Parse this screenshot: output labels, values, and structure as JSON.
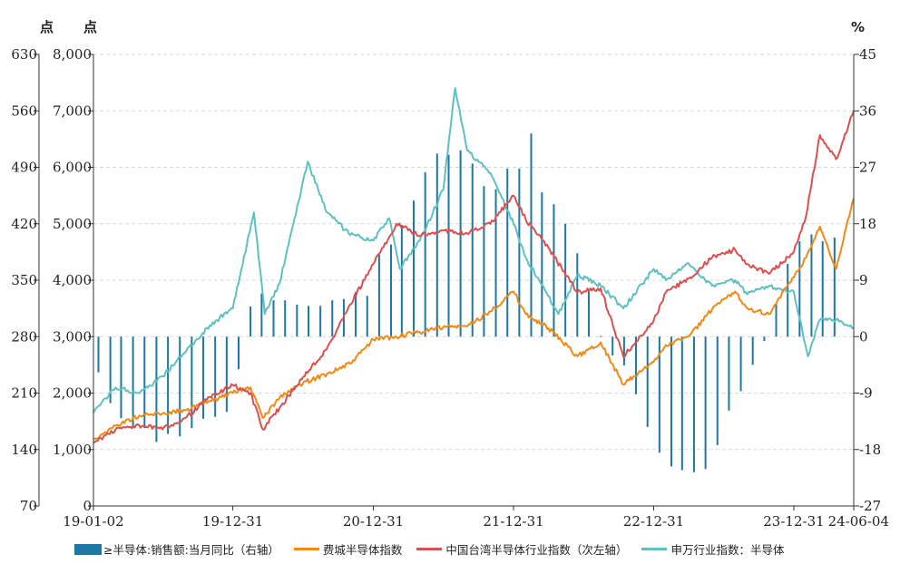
{
  "chart_data": {
    "type": "line+bar",
    "axis_units": {
      "left_outer": "点",
      "left_inner": "点",
      "right": "%"
    },
    "y_left_outer": {
      "ticks": [
        "630",
        "560",
        "490",
        "420",
        "350",
        "280",
        "210",
        "140",
        "70"
      ],
      "range": [
        70,
        630
      ]
    },
    "y_left_inner": {
      "ticks": [
        "8,000",
        "7,000",
        "6,000",
        "5,000",
        "4,000",
        "3,000",
        "2,000",
        "1,000",
        "0"
      ],
      "range": [
        0,
        8000
      ]
    },
    "y_right": {
      "ticks": [
        "45",
        "36",
        "27",
        "18",
        "9",
        "0",
        "-9",
        "-18",
        "-27"
      ],
      "range": [
        -27,
        45
      ]
    },
    "x_ticks": [
      "19-01-02",
      "19-12-31",
      "20-12-31",
      "21-12-31",
      "22-12-31",
      "23-12-31",
      "24-06-04"
    ],
    "grid": "horizontal dashed",
    "legend_position": "bottom",
    "series": [
      {
        "name": "全球半导体:销售额:当月同比（右轴）",
        "legend_text": "≥半导体:销售额:当月同比（右轴）",
        "type": "bar",
        "axis": "right",
        "color": "#1f77a4",
        "x": [
          "2019-01",
          "2019-02",
          "2019-03",
          "2019-04",
          "2019-05",
          "2019-06",
          "2019-07",
          "2019-08",
          "2019-09",
          "2019-10",
          "2019-11",
          "2019-12",
          "2020-01",
          "2020-02",
          "2020-03",
          "2020-04",
          "2020-05",
          "2020-06",
          "2020-07",
          "2020-08",
          "2020-09",
          "2020-10",
          "2020-11",
          "2020-12",
          "2021-01",
          "2021-02",
          "2021-03",
          "2021-04",
          "2021-05",
          "2021-06",
          "2021-07",
          "2021-08",
          "2021-09",
          "2021-10",
          "2021-11",
          "2021-12",
          "2022-01",
          "2022-02",
          "2022-03",
          "2022-04",
          "2022-05",
          "2022-06",
          "2022-07",
          "2022-08",
          "2022-09",
          "2022-10",
          "2022-11",
          "2022-12",
          "2023-01",
          "2023-02",
          "2023-03",
          "2023-04",
          "2023-05",
          "2023-06",
          "2023-07",
          "2023-08",
          "2023-09",
          "2023-10",
          "2023-11",
          "2023-12",
          "2024-01",
          "2024-02",
          "2024-03",
          "2024-04"
        ],
        "values": [
          -5.7,
          -10.6,
          -13,
          -14.6,
          -14.6,
          -16.8,
          -15.5,
          -15.9,
          -14.6,
          -13.1,
          -12.8,
          -12,
          -5.2,
          4.8,
          6.9,
          5.8,
          5.8,
          5.1,
          4.9,
          4.9,
          5.8,
          6,
          7.1,
          6.5,
          13.2,
          14.7,
          17.8,
          21.7,
          26.2,
          29.2,
          29,
          29.7,
          27.6,
          24,
          23.5,
          26.8,
          26.8,
          32.4,
          23,
          21.1,
          18,
          13.3,
          7.3,
          0.1,
          -3,
          -4.6,
          -9.2,
          -14.4,
          -18.5,
          -20.7,
          -21.3,
          -21.6,
          -21.1,
          -17.3,
          -11.8,
          -8.7,
          -4.5,
          -0.7,
          5.3,
          11.6,
          15.2,
          16.3,
          15.2,
          15.8
        ]
      },
      {
        "name": "费城半导体指数",
        "type": "line",
        "axis": "left_inner",
        "color": "#ef8a17",
        "x": [
          "2019-01-02",
          "2019-03-01",
          "2019-05-01",
          "2019-07-01",
          "2019-09-01",
          "2019-11-01",
          "2019-12-31",
          "2020-02-15",
          "2020-03-18",
          "2020-05-01",
          "2020-07-01",
          "2020-09-01",
          "2020-11-01",
          "2020-12-31",
          "2021-03-01",
          "2021-05-01",
          "2021-07-01",
          "2021-09-01",
          "2021-11-01",
          "2021-12-31",
          "2022-02-01",
          "2022-04-01",
          "2022-06-15",
          "2022-08-15",
          "2022-10-13",
          "2022-12-31",
          "2023-02-01",
          "2023-04-01",
          "2023-06-01",
          "2023-07-31",
          "2023-09-01",
          "2023-10-27",
          "2023-12-31",
          "2024-02-01",
          "2024-03-08",
          "2024-04-19",
          "2024-06-04"
        ],
        "values": [
          1180,
          1420,
          1600,
          1640,
          1700,
          1860,
          2000,
          2100,
          1560,
          1920,
          2180,
          2340,
          2520,
          2950,
          3000,
          3080,
          3170,
          3180,
          3450,
          3800,
          3400,
          3150,
          2650,
          2900,
          2150,
          2550,
          2850,
          3000,
          3480,
          3800,
          3500,
          3400,
          4050,
          4400,
          4950,
          4200,
          5450
        ]
      },
      {
        "name": "中国台湾半导体行业指数（次左轴）",
        "type": "line",
        "axis": "left_outer",
        "color": "#d95050",
        "x": [
          "2019-01-02",
          "2019-03-01",
          "2019-05-01",
          "2019-07-01",
          "2019-09-01",
          "2019-11-01",
          "2019-12-31",
          "2020-02-15",
          "2020-03-18",
          "2020-05-01",
          "2020-07-01",
          "2020-09-01",
          "2020-11-01",
          "2020-12-31",
          "2021-03-01",
          "2021-05-01",
          "2021-07-01",
          "2021-09-01",
          "2021-11-01",
          "2021-12-31",
          "2022-02-01",
          "2022-04-01",
          "2022-06-15",
          "2022-08-15",
          "2022-10-13",
          "2022-12-31",
          "2023-02-01",
          "2023-04-01",
          "2023-06-01",
          "2023-07-31",
          "2023-09-01",
          "2023-10-27",
          "2023-12-31",
          "2024-02-01",
          "2024-03-08",
          "2024-04-19",
          "2024-06-04"
        ],
        "values": [
          148,
          165,
          170,
          165,
          180,
          205,
          220,
          210,
          165,
          192,
          230,
          265,
          320,
          370,
          420,
          405,
          412,
          408,
          420,
          455,
          425,
          390,
          335,
          340,
          255,
          300,
          335,
          352,
          378,
          388,
          370,
          358,
          385,
          430,
          530,
          500,
          560
        ]
      },
      {
        "name": "申万行业指数：半导体",
        "type": "line",
        "axis": "left_inner",
        "color": "#5ec1c0",
        "x": [
          "2019-01-02",
          "2019-03-01",
          "2019-05-01",
          "2019-07-01",
          "2019-09-01",
          "2019-11-01",
          "2019-12-31",
          "2020-02-24",
          "2020-03-23",
          "2020-05-01",
          "2020-07-13",
          "2020-09-01",
          "2020-11-01",
          "2020-12-31",
          "2021-02-10",
          "2021-03-10",
          "2021-05-01",
          "2021-07-01",
          "2021-08-01",
          "2021-09-01",
          "2021-11-01",
          "2021-12-31",
          "2022-02-01",
          "2022-04-27",
          "2022-06-15",
          "2022-08-15",
          "2022-10-13",
          "2022-12-31",
          "2023-02-01",
          "2023-04-01",
          "2023-06-01",
          "2023-07-31",
          "2023-09-01",
          "2023-10-27",
          "2023-12-31",
          "2024-02-06",
          "2024-03-08",
          "2024-04-19",
          "2024-06-04"
        ],
        "values": [
          1650,
          2100,
          2000,
          2300,
          2750,
          3200,
          3500,
          5200,
          3400,
          3950,
          6100,
          5200,
          4800,
          4700,
          5100,
          4200,
          4700,
          5600,
          7400,
          6300,
          5900,
          5000,
          4400,
          3400,
          4100,
          3900,
          3500,
          4200,
          4000,
          4300,
          3900,
          4000,
          3750,
          3900,
          3800,
          2650,
          3300,
          3300,
          3150
        ]
      }
    ]
  }
}
